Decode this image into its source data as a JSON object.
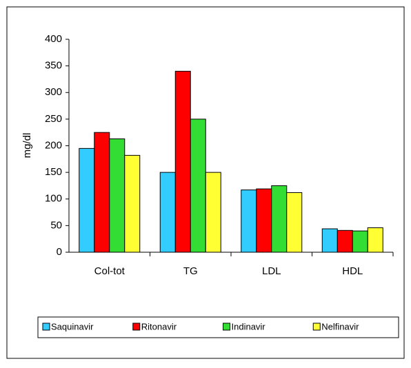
{
  "chart_data": {
    "type": "bar",
    "y_label": "mg/dl",
    "categories": [
      "Col-tot",
      "TG",
      "LDL",
      "HDL"
    ],
    "series": [
      {
        "name": "Saquinavir",
        "color": "#33ccff",
        "values": [
          195,
          150,
          117,
          44
        ]
      },
      {
        "name": "Ritonavir",
        "color": "#ff0000",
        "values": [
          225,
          340,
          119,
          41
        ]
      },
      {
        "name": "Indinavir",
        "color": "#33dd33",
        "values": [
          213,
          250,
          125,
          40
        ]
      },
      {
        "name": "Nelfinavir",
        "color": "#ffff33",
        "values": [
          182,
          150,
          112,
          46
        ]
      }
    ],
    "ylim": [
      0,
      400
    ],
    "yticks": [
      0,
      50,
      100,
      150,
      200,
      250,
      300,
      350,
      400
    ],
    "grid": false,
    "legend": "bottom"
  }
}
